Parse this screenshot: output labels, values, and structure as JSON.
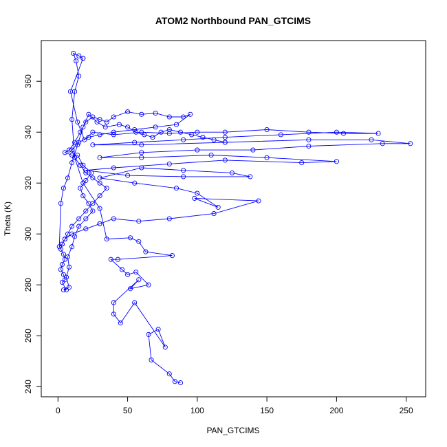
{
  "chart_data": {
    "type": "scatter",
    "title": "ATOM2 Northbound PAN_GTCIMS",
    "xlabel": "PAN_GTCIMS",
    "ylabel": "Theta (K)",
    "xlim": [
      -12,
      264
    ],
    "ylim": [
      236,
      376
    ],
    "xticks": [
      0,
      50,
      100,
      150,
      200,
      250
    ],
    "yticks": [
      240,
      260,
      280,
      300,
      320,
      340,
      360
    ],
    "grid": false,
    "legend": "none",
    "marker": "open-circle",
    "connected": true,
    "color": "#0000ff",
    "series": [
      {
        "values": [
          [
            88,
            241.5
          ],
          [
            84,
            242
          ],
          [
            80,
            245
          ],
          [
            67,
            250.5
          ],
          [
            65,
            260.5
          ],
          [
            72,
            262.5
          ],
          [
            77,
            255.5
          ],
          [
            55,
            273
          ],
          [
            45,
            265
          ],
          [
            40,
            268.5
          ],
          [
            40,
            273
          ],
          [
            58,
            282
          ],
          [
            52,
            278.5
          ],
          [
            65,
            280
          ],
          [
            56,
            285
          ],
          [
            50,
            284
          ],
          [
            46,
            286
          ],
          [
            38,
            290
          ],
          [
            43,
            290
          ],
          [
            82,
            291.5
          ],
          [
            63,
            293
          ],
          [
            58,
            297
          ],
          [
            52,
            298.5
          ],
          [
            35,
            298
          ],
          [
            30,
            310
          ],
          [
            18,
            320
          ],
          [
            12,
            330
          ],
          [
            10,
            345
          ],
          [
            12,
            356
          ],
          [
            15,
            362
          ],
          [
            13,
            368
          ],
          [
            11,
            371
          ],
          [
            15,
            370
          ],
          [
            18,
            369
          ]
        ]
      },
      {
        "values": [
          [
            18,
            369
          ],
          [
            9,
            356
          ],
          [
            14,
            344
          ],
          [
            19,
            337
          ],
          [
            25,
            340
          ],
          [
            40,
            339
          ],
          [
            60,
            340
          ],
          [
            80,
            339.5
          ],
          [
            100,
            340
          ],
          [
            120,
            340
          ],
          [
            150,
            341
          ],
          [
            180,
            340
          ],
          [
            205,
            339.5
          ],
          [
            230,
            339.5
          ],
          [
            200,
            340
          ],
          [
            160,
            339
          ],
          [
            120,
            338
          ],
          [
            90,
            337
          ],
          [
            55,
            336
          ],
          [
            25,
            335
          ],
          [
            60,
            335
          ],
          [
            120,
            336
          ],
          [
            180,
            337
          ],
          [
            225,
            337
          ],
          [
            253,
            335.5
          ],
          [
            233,
            335.5
          ],
          [
            180,
            334.5
          ],
          [
            140,
            333
          ],
          [
            100,
            333
          ],
          [
            60,
            332
          ],
          [
            30,
            330
          ],
          [
            60,
            330
          ],
          [
            110,
            331
          ],
          [
            150,
            330
          ],
          [
            200,
            328.5
          ],
          [
            175,
            328
          ],
          [
            120,
            329
          ],
          [
            80,
            327.5
          ],
          [
            40,
            326
          ],
          [
            20,
            325
          ],
          [
            50,
            323
          ],
          [
            90,
            322.5
          ],
          [
            138,
            322.5
          ],
          [
            125,
            324
          ],
          [
            90,
            325
          ],
          [
            60,
            326
          ],
          [
            30,
            322
          ],
          [
            55,
            320
          ],
          [
            85,
            318
          ],
          [
            100,
            316
          ],
          [
            115,
            310.5
          ],
          [
            98,
            314
          ],
          [
            144,
            313
          ],
          [
            112,
            308
          ],
          [
            80,
            306
          ],
          [
            58,
            305
          ],
          [
            40,
            306
          ],
          [
            30,
            304
          ]
        ]
      },
      {
        "values": [
          [
            30,
            304
          ],
          [
            20,
            302
          ],
          [
            10,
            300
          ],
          [
            5,
            298
          ],
          [
            3,
            296
          ],
          [
            2,
            294
          ],
          [
            4,
            292
          ],
          [
            5,
            290
          ],
          [
            3,
            288
          ],
          [
            2,
            286
          ],
          [
            4,
            284
          ],
          [
            5,
            282
          ],
          [
            3,
            281
          ],
          [
            6,
            278
          ],
          [
            4,
            278
          ],
          [
            8,
            279
          ],
          [
            6,
            283
          ],
          [
            8,
            287
          ],
          [
            7,
            291
          ],
          [
            10,
            295
          ],
          [
            12,
            299
          ],
          [
            15,
            303
          ],
          [
            20,
            306
          ],
          [
            25,
            309
          ],
          [
            22,
            312
          ],
          [
            18,
            315
          ],
          [
            16,
            318
          ],
          [
            20,
            321
          ],
          [
            24,
            324
          ],
          [
            18,
            327
          ],
          [
            14,
            331
          ],
          [
            10,
            331
          ],
          [
            5,
            332
          ],
          [
            8,
            333
          ],
          [
            12,
            336
          ],
          [
            16,
            340
          ],
          [
            20,
            344
          ],
          [
            25,
            346
          ],
          [
            30,
            345
          ],
          [
            35,
            344
          ],
          [
            40,
            346
          ],
          [
            50,
            348
          ],
          [
            60,
            347
          ],
          [
            70,
            347.5
          ],
          [
            80,
            346
          ],
          [
            90,
            346
          ],
          [
            95,
            347
          ],
          [
            85,
            343
          ],
          [
            70,
            342
          ],
          [
            55,
            341
          ],
          [
            40,
            340
          ],
          [
            30,
            339
          ],
          [
            22,
            338
          ],
          [
            15,
            336
          ],
          [
            10,
            333
          ],
          [
            12,
            330
          ],
          [
            16,
            327
          ],
          [
            20,
            324
          ],
          [
            25,
            322
          ],
          [
            30,
            320
          ],
          [
            35,
            318
          ],
          [
            30,
            315
          ],
          [
            25,
            312
          ],
          [
            20,
            309
          ],
          [
            15,
            306
          ],
          [
            10,
            303
          ],
          [
            7,
            300
          ],
          [
            5,
            298
          ],
          [
            3,
            296
          ],
          [
            1,
            295
          ],
          [
            2,
            312
          ],
          [
            4,
            318
          ],
          [
            7,
            322
          ],
          [
            10,
            328
          ],
          [
            14,
            335
          ],
          [
            18,
            342
          ],
          [
            22,
            347
          ],
          [
            28,
            344
          ],
          [
            34,
            342
          ],
          [
            44,
            343
          ],
          [
            50,
            342
          ],
          [
            56,
            340
          ],
          [
            62,
            339
          ],
          [
            68,
            338
          ],
          [
            74,
            340
          ],
          [
            80,
            341
          ],
          [
            88,
            340
          ],
          [
            96,
            339
          ],
          [
            104,
            338
          ],
          [
            112,
            337
          ],
          [
            120,
            336
          ]
        ]
      }
    ]
  }
}
